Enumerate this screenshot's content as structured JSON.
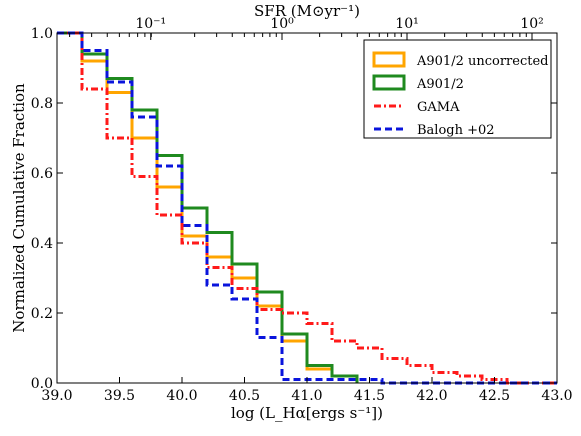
{
  "chart_data": {
    "type": "line",
    "xlabel": "log (L_Hα[ergs s⁻¹])",
    "ylabel": "Normalized Cumulative Fraction",
    "top_xlabel": "SFR (M⊙yr⁻¹)",
    "xlim": [
      39.0,
      43.0
    ],
    "ylim": [
      0.0,
      1.0
    ],
    "x_ticks": [
      "39.0",
      "39.5",
      "40.0",
      "40.5",
      "41.0",
      "41.5",
      "42.0",
      "42.5",
      "43.0"
    ],
    "y_ticks": [
      "0.0",
      "0.2",
      "0.4",
      "0.6",
      "0.8",
      "1.0"
    ],
    "top_ticks": [
      {
        "label": "10⁻¹",
        "value": 39.75
      },
      {
        "label": "10⁰",
        "value": 40.8
      },
      {
        "label": "10¹",
        "value": 41.8
      },
      {
        "label": "10²",
        "value": 42.8
      }
    ],
    "legend_position": "top-right",
    "series": [
      {
        "name": "A901/2 uncorrected",
        "color": "#ffa500",
        "style": "solid",
        "x": [
          39.0,
          39.2,
          39.4,
          39.6,
          39.8,
          40.0,
          40.2,
          40.4,
          40.6,
          40.8,
          41.0,
          41.2,
          41.4
        ],
        "y": [
          1.0,
          0.92,
          0.83,
          0.7,
          0.56,
          0.42,
          0.36,
          0.3,
          0.22,
          0.12,
          0.04,
          0.02,
          0.0
        ]
      },
      {
        "name": "A901/2",
        "color": "#1f8a1f",
        "style": "solid",
        "x": [
          39.0,
          39.2,
          39.4,
          39.6,
          39.8,
          40.0,
          40.2,
          40.4,
          40.6,
          40.8,
          41.0,
          41.2,
          41.4
        ],
        "y": [
          1.0,
          0.94,
          0.87,
          0.78,
          0.65,
          0.5,
          0.43,
          0.34,
          0.26,
          0.14,
          0.05,
          0.02,
          0.0
        ]
      },
      {
        "name": "GAMA",
        "color": "#ff1a1a",
        "style": "dashdot",
        "x": [
          39.0,
          39.2,
          39.4,
          39.6,
          39.8,
          40.0,
          40.2,
          40.4,
          40.6,
          40.8,
          41.0,
          41.2,
          41.4,
          41.6,
          41.8,
          42.0,
          42.2,
          42.4,
          42.6,
          43.0
        ],
        "y": [
          1.0,
          0.84,
          0.7,
          0.59,
          0.48,
          0.4,
          0.33,
          0.27,
          0.21,
          0.2,
          0.17,
          0.12,
          0.1,
          0.07,
          0.05,
          0.03,
          0.02,
          0.01,
          0.0,
          0.0
        ]
      },
      {
        "name": "Balogh +02",
        "color": "#0a14dc",
        "style": "dashed",
        "x": [
          39.0,
          39.2,
          39.4,
          39.6,
          39.8,
          40.0,
          40.2,
          40.4,
          40.6,
          40.8,
          41.0,
          41.2,
          41.4,
          41.6,
          41.8,
          42.0,
          43.0
        ],
        "y": [
          1.0,
          0.95,
          0.86,
          0.76,
          0.62,
          0.45,
          0.28,
          0.24,
          0.13,
          0.01,
          0.01,
          0.01,
          0.01,
          0.0,
          0.0,
          0.0,
          0.0
        ]
      }
    ]
  }
}
